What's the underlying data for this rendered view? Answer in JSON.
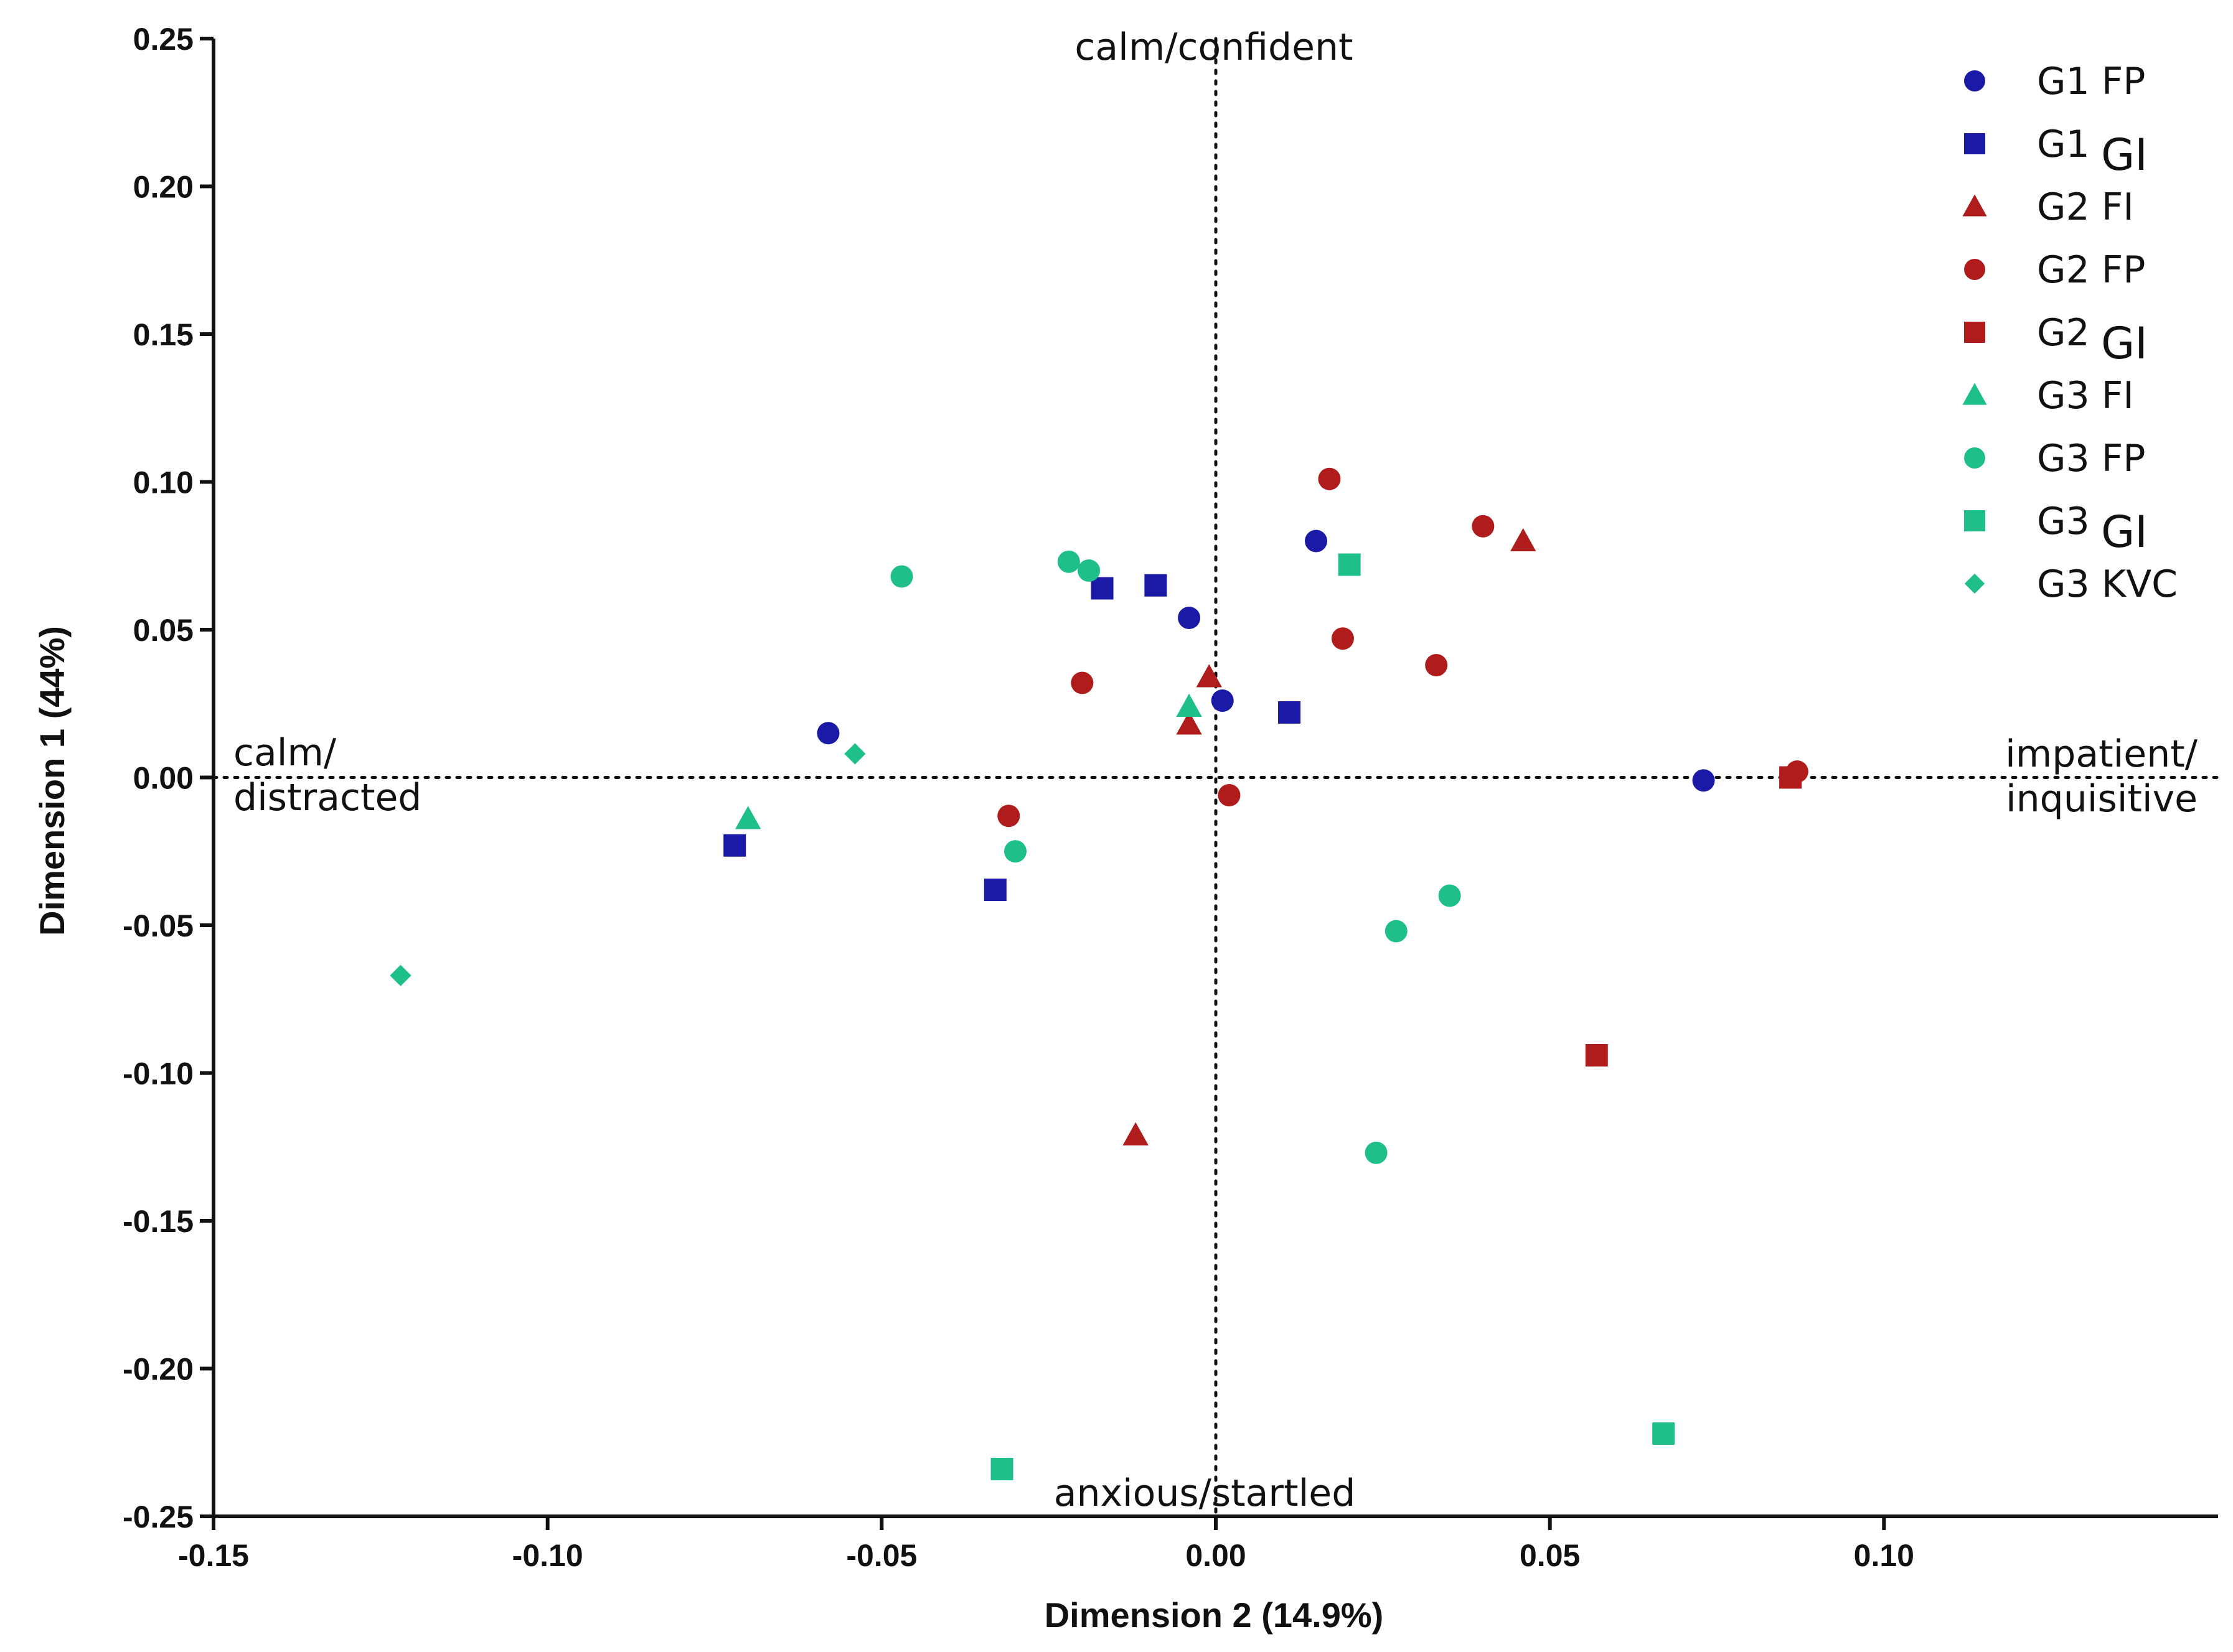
{
  "chart_data": {
    "type": "scatter",
    "title": "",
    "xlabel": "Dimension 2 (14.9%)",
    "ylabel": "Dimension 1 (44%)",
    "xlim": [
      -0.15,
      0.15
    ],
    "ylim": [
      -0.25,
      0.25
    ],
    "x_ticks": [
      -0.15,
      -0.1,
      -0.05,
      0.0,
      0.05,
      0.1
    ],
    "x_tick_labels": [
      "-0.15",
      "-0.10",
      "-0.05",
      "0.00",
      "0.05",
      "0.10"
    ],
    "y_ticks": [
      0.25,
      0.2,
      0.15,
      0.1,
      0.05,
      0.0,
      -0.05,
      -0.1,
      -0.15,
      -0.2,
      -0.25
    ],
    "y_tick_labels": [
      "0.25",
      "0.20",
      "0.15",
      "0.10",
      "0.05",
      "0.00",
      "-0.05",
      "-0.10",
      "-0.15",
      "-0.20",
      "-0.25"
    ],
    "reference_lines": {
      "x": 0,
      "y": 0,
      "style": "dotted"
    },
    "annotations": {
      "top": "calm/confident",
      "bottom": "anxious/startled",
      "left_line1": "calm/",
      "left_line2": "distracted",
      "right_line1": "impatient/",
      "right_line2": "inquisitive"
    },
    "legend_position": "top-right",
    "series": [
      {
        "name": "G1 FP",
        "prefix": "G1 FP",
        "suffix": "",
        "marker": "circle",
        "color": "#1a1aa6",
        "points": [
          [
            -0.058,
            0.015
          ],
          [
            -0.004,
            0.054
          ],
          [
            0.015,
            0.08
          ],
          [
            0.001,
            0.026
          ],
          [
            0.073,
            -0.001
          ]
        ]
      },
      {
        "name": "G1 GI",
        "prefix": "G1",
        "suffix": "GI",
        "marker": "square",
        "color": "#1a1aa6",
        "points": [
          [
            -0.072,
            -0.023
          ],
          [
            -0.033,
            -0.038
          ],
          [
            -0.017,
            0.064
          ],
          [
            -0.009,
            0.065
          ],
          [
            0.011,
            0.022
          ]
        ]
      },
      {
        "name": "G2 FI",
        "prefix": "G2 FI",
        "suffix": "",
        "marker": "triangle",
        "color": "#b01c1c",
        "points": [
          [
            -0.004,
            0.018
          ],
          [
            -0.001,
            0.034
          ],
          [
            0.046,
            0.08
          ],
          [
            -0.012,
            -0.121
          ]
        ]
      },
      {
        "name": "G2 FP",
        "prefix": "G2 FP",
        "suffix": "",
        "marker": "circle",
        "color": "#b01c1c",
        "points": [
          [
            -0.02,
            0.032
          ],
          [
            -0.031,
            -0.013
          ],
          [
            0.002,
            -0.006
          ],
          [
            0.017,
            0.101
          ],
          [
            0.019,
            0.047
          ],
          [
            0.033,
            0.038
          ],
          [
            0.04,
            0.085
          ],
          [
            0.087,
            0.002
          ]
        ]
      },
      {
        "name": "G2 GI",
        "prefix": "G2",
        "suffix": "GI",
        "marker": "square",
        "color": "#b01c1c",
        "points": [
          [
            0.057,
            -0.094
          ],
          [
            0.086,
            0.0
          ]
        ]
      },
      {
        "name": "G3 FI",
        "prefix": "G3 FI",
        "suffix": "",
        "marker": "triangle",
        "color": "#1fbf8a",
        "points": [
          [
            -0.07,
            -0.014
          ],
          [
            -0.004,
            0.024
          ]
        ]
      },
      {
        "name": "G3 FP",
        "prefix": "G3 FP",
        "suffix": "",
        "marker": "circle",
        "color": "#1fbf8a",
        "points": [
          [
            -0.047,
            0.068
          ],
          [
            -0.022,
            0.073
          ],
          [
            -0.019,
            0.07
          ],
          [
            -0.03,
            -0.025
          ],
          [
            0.027,
            -0.052
          ],
          [
            0.035,
            -0.04
          ],
          [
            0.024,
            -0.127
          ]
        ]
      },
      {
        "name": "G3 GI",
        "prefix": "G3",
        "suffix": "GI",
        "marker": "square",
        "color": "#1fbf8a",
        "points": [
          [
            0.02,
            0.072
          ],
          [
            -0.032,
            -0.234
          ],
          [
            0.067,
            -0.222
          ]
        ]
      },
      {
        "name": "G3 KVC",
        "prefix": "G3 KVC",
        "suffix": "",
        "marker": "diamond",
        "color": "#1fbf8a",
        "points": [
          [
            -0.054,
            0.008
          ],
          [
            -0.122,
            -0.067
          ]
        ]
      }
    ]
  }
}
